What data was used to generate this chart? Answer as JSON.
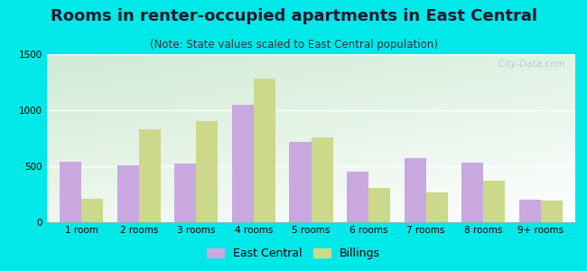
{
  "title": "Rooms in renter-occupied apartments in East Central",
  "subtitle": "(Note: State values scaled to East Central population)",
  "categories": [
    "1 room",
    "2 rooms",
    "3 rooms",
    "4 rooms",
    "5 rooms",
    "6 rooms",
    "7 rooms",
    "8 rooms",
    "9+ rooms"
  ],
  "east_central": [
    540,
    510,
    525,
    1050,
    720,
    450,
    570,
    530,
    200
  ],
  "billings": [
    210,
    830,
    900,
    1280,
    760,
    310,
    270,
    370,
    195
  ],
  "east_central_color": "#c9a8e0",
  "billings_color": "#ccd98a",
  "background_outer": "#00e8e8",
  "ylim": [
    0,
    1500
  ],
  "yticks": [
    0,
    500,
    1000,
    1500
  ],
  "bar_width": 0.38,
  "figsize": [
    6.5,
    3.0
  ],
  "dpi": 100,
  "title_fontsize": 13,
  "subtitle_fontsize": 8.5,
  "tick_fontsize": 7.5,
  "legend_fontsize": 9,
  "watermark": "  City-Data.com"
}
